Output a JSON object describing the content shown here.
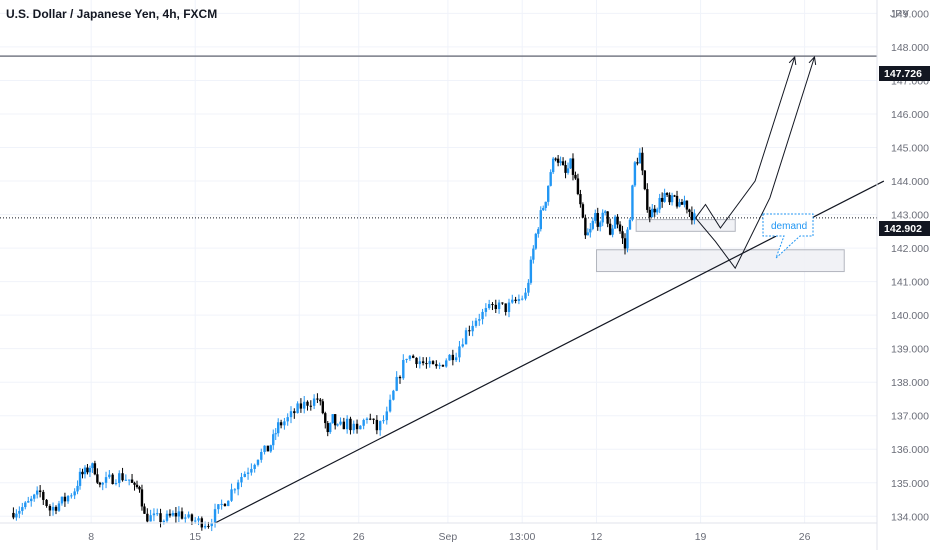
{
  "header": {
    "title": "U.S. Dollar / Japanese Yen, 4h, FXCM"
  },
  "price_axis": {
    "currency": "JPY",
    "ticks": [
      "149.000",
      "148.000",
      "147.000",
      "146.000",
      "145.000",
      "144.000",
      "143.000",
      "142.000",
      "141.000",
      "140.000",
      "139.000",
      "138.000",
      "137.000",
      "136.000",
      "135.000",
      "134.000"
    ]
  },
  "time_axis": {
    "ticks": [
      {
        "label": "8",
        "t": 18
      },
      {
        "label": "15",
        "t": 39
      },
      {
        "label": "22",
        "t": 60
      },
      {
        "label": "26",
        "t": 72
      },
      {
        "label": "Sep",
        "t": 90
      },
      {
        "label": "13:00",
        "t": 105
      },
      {
        "label": "12",
        "t": 120
      },
      {
        "label": "19",
        "t": 141
      },
      {
        "label": "26",
        "t": 162
      }
    ]
  },
  "price_labels": {
    "horizontal_line": "147.726",
    "last_price": "142.902"
  },
  "annotations": {
    "callout": "demand"
  },
  "colors": {
    "up": "#26a69a",
    "up_bar": "#2196f3",
    "down": "#000000",
    "label_bg": "#131722",
    "axis_text": "#6a6d78",
    "grid": "#f0f3fa"
  },
  "chart_data": {
    "type": "candlestick",
    "symbol": "USD/JPY",
    "timeframe": "4h",
    "source": "FXCM",
    "ylim": [
      133.8,
      149.4
    ],
    "y_ticks": [
      149,
      148,
      147,
      146,
      145,
      144,
      143,
      142,
      141,
      140,
      139,
      138,
      137,
      136,
      135,
      134
    ],
    "series": [
      {
        "name": "USD/JPY price path",
        "points": [
          [
            2,
            134.1
          ],
          [
            5,
            134.3
          ],
          [
            8,
            134.7
          ],
          [
            10,
            134.2
          ],
          [
            13,
            134.5
          ],
          [
            15,
            134.8
          ],
          [
            16,
            135.2
          ],
          [
            17,
            135.3
          ],
          [
            18,
            135.5
          ],
          [
            19,
            135.4
          ],
          [
            20,
            134.9
          ],
          [
            22,
            135.1
          ],
          [
            24,
            135.2
          ],
          [
            26,
            135.1
          ],
          [
            27,
            134.8
          ],
          [
            28,
            134.9
          ],
          [
            29,
            134.0
          ],
          [
            33,
            133.9
          ],
          [
            36,
            134.1
          ],
          [
            38,
            133.9
          ],
          [
            42,
            133.8
          ],
          [
            44,
            134.2
          ],
          [
            46,
            134.6
          ],
          [
            48,
            135.1
          ],
          [
            50,
            135.4
          ],
          [
            52,
            135.8
          ],
          [
            54,
            136.0
          ],
          [
            55,
            136.3
          ],
          [
            56,
            136.7
          ],
          [
            58,
            136.9
          ],
          [
            60,
            137.2
          ],
          [
            62,
            137.4
          ],
          [
            64,
            137.5
          ],
          [
            65,
            137.1
          ],
          [
            66,
            136.4
          ],
          [
            67,
            136.9
          ],
          [
            68,
            136.6
          ],
          [
            70,
            136.8
          ],
          [
            72,
            136.5
          ],
          [
            74,
            137.0
          ],
          [
            76,
            136.6
          ],
          [
            78,
            137.0
          ],
          [
            80,
            138.0
          ],
          [
            82,
            138.8
          ],
          [
            84,
            138.7
          ],
          [
            86,
            138.5
          ],
          [
            88,
            138.4
          ],
          [
            90,
            138.7
          ],
          [
            92,
            138.9
          ],
          [
            94,
            139.5
          ],
          [
            96,
            139.9
          ],
          [
            98,
            140.1
          ],
          [
            100,
            140.3
          ],
          [
            102,
            140.2
          ],
          [
            104,
            140.4
          ],
          [
            106,
            140.6
          ],
          [
            107,
            141.5
          ],
          [
            108,
            142.4
          ],
          [
            109,
            143.0
          ],
          [
            110,
            143.5
          ],
          [
            111,
            144.3
          ],
          [
            112,
            144.8
          ],
          [
            113,
            144.5
          ],
          [
            114,
            144.2
          ],
          [
            115,
            144.5
          ],
          [
            116,
            144.0
          ],
          [
            117,
            143.2
          ],
          [
            118,
            142.3
          ],
          [
            119,
            142.5
          ],
          [
            120,
            143.0
          ],
          [
            121,
            142.6
          ],
          [
            122,
            143.2
          ],
          [
            123,
            142.3
          ],
          [
            124,
            143.0
          ],
          [
            125,
            142.5
          ],
          [
            126,
            142.0
          ],
          [
            127,
            143.0
          ],
          [
            128,
            144.5
          ],
          [
            129,
            144.8
          ],
          [
            130,
            143.6
          ],
          [
            131,
            143.0
          ],
          [
            132,
            143.2
          ],
          [
            133,
            143.4
          ],
          [
            134,
            143.6
          ],
          [
            135,
            143.3
          ],
          [
            136,
            143.5
          ],
          [
            137,
            143.2
          ],
          [
            138,
            143.4
          ],
          [
            139,
            143.1
          ],
          [
            140,
            142.9
          ]
        ]
      }
    ],
    "trendline": [
      [
        43,
        133.8
      ],
      [
        178,
        144.0
      ]
    ],
    "projection_paths": [
      [
        [
          140,
          142.9
        ],
        [
          142,
          143.3
        ],
        [
          145,
          142.6
        ],
        [
          152,
          144.0
        ],
        [
          160,
          147.7
        ]
      ],
      [
        [
          140,
          142.9
        ],
        [
          144,
          142.2
        ],
        [
          148,
          141.4
        ],
        [
          155,
          143.5
        ],
        [
          164,
          147.7
        ]
      ]
    ],
    "horizontal_line": 147.726,
    "last_price_line": 142.902,
    "zones": [
      {
        "x0": 128,
        "x1": 148,
        "y0": 142.5,
        "y1": 142.85
      },
      {
        "x0": 120,
        "x1": 170,
        "y0": 141.3,
        "y1": 141.95
      }
    ]
  }
}
